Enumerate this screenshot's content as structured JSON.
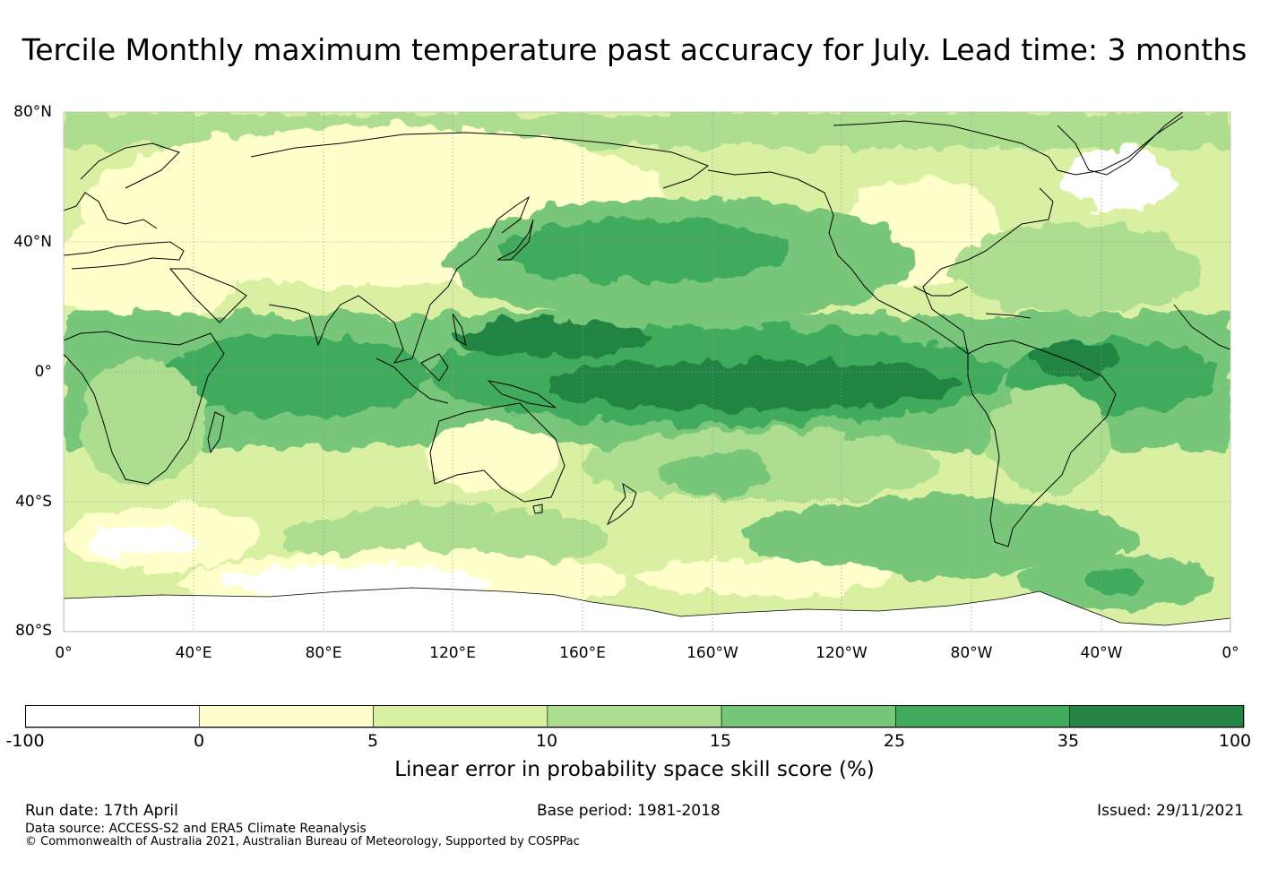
{
  "title": "Tercile Monthly maximum temperature past accuracy for July. Lead time: 3 months",
  "map": {
    "lat_labels": [
      "80°N",
      "40°N",
      "0°",
      "40°S",
      "80°S"
    ],
    "lon_labels": [
      "0°",
      "40°E",
      "80°E",
      "120°E",
      "160°E",
      "160°W",
      "120°W",
      "80°W",
      "40°W",
      "0°"
    ],
    "colors": {
      "white": "#ffffff",
      "c0": "#ffffcc",
      "c5": "#d9f0a3",
      "c10": "#addd8e",
      "c15": "#78c679",
      "c25": "#41ab5d",
      "c35": "#238443",
      "grid": "#9a9a9a",
      "coast": "#000000"
    }
  },
  "colorbar": {
    "ticks": [
      "-100",
      "0",
      "5",
      "10",
      "15",
      "25",
      "35",
      "100"
    ],
    "colors": [
      "#ffffff",
      "#ffffcc",
      "#d9f0a3",
      "#addd8e",
      "#78c679",
      "#41ab5d",
      "#238443"
    ],
    "label": "Linear error in probability space skill score (%)"
  },
  "footer": {
    "run_date": "Run date: 17th April",
    "base_period": "Base period: 1981-2018",
    "issued": "Issued: 29/11/2021",
    "data_source": "Data source: ACCESS-S2 and ERA5 Climate Reanalysis",
    "copyright": "© Commonwealth of Australia 2021, Australian Bureau of Meteorology, Supported by COSPPac"
  }
}
